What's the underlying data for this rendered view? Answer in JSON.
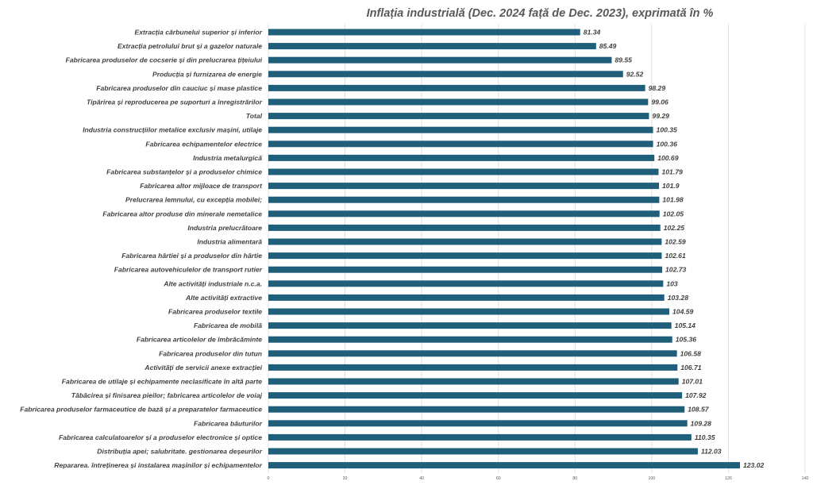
{
  "chart_data": {
    "type": "bar",
    "orientation": "horizontal",
    "title": "Inflația industrială (Dec. 2024 față de  Dec. 2023), exprimată în %",
    "categories": [
      "Extracția cărbunelui superior și inferior",
      "Extracția petrolului brut și a gazelor naturale",
      "Fabricarea produselor de cocserie și din prelucrarea țițeiului",
      "Producția și furnizarea de energie",
      "Fabricarea produselor din cauciuc și mase plastice",
      "Tipărirea și reproducerea pe suporturi a înregistrărilor",
      "Total",
      "Industria construcțiilor metalice  exclusiv mașini, utilaje",
      "Fabricarea echipamentelor electrice",
      "Industria metalurgică",
      "Fabricarea substanțelor și a produselor chimice",
      "Fabricarea altor mijloace de transport",
      "Prelucrarea lemnului,  cu excepția mobilei;",
      "Fabricarea altor produse din minerale nemetalice",
      "Industria prelucrătoare",
      "Industria alimentară",
      "Fabricarea hârtiei și a produselor din hârtie",
      "Fabricarea autovehiculelor de transport rutier",
      "Alte activități industriale n.c.a.",
      "Alte activități extractive",
      "Fabricarea produselor textile",
      "Fabricarea de mobilă",
      "Fabricarea articolelor de îmbrăcăminte",
      "Fabricarea produselor din tutun",
      "Activități de servicii anexe extracției",
      "Fabricarea de utilaje și echipamente neclasificate în altă parte",
      "Tăbăcirea și finisarea pieilor; fabricarea articolelor de voiaj",
      "Fabricarea produselor farmaceutice de bază și a preparatelor farmaceutice",
      "Fabricarea băuturilor",
      "Fabricarea calculatoarelor și a produselor electronice și optice",
      "Distribuția apei; salubritate. gestionarea deșeurilor",
      "Repararea. întreținerea și instalarea mașinilor și echipamentelor"
    ],
    "values": [
      81.34,
      85.49,
      89.55,
      92.52,
      98.29,
      99.06,
      99.29,
      100.35,
      100.36,
      100.69,
      101.79,
      101.9,
      101.98,
      102.05,
      102.25,
      102.59,
      102.61,
      102.73,
      103,
      103.28,
      104.59,
      105.14,
      105.36,
      106.58,
      106.71,
      107.01,
      107.92,
      108.57,
      109.28,
      110.35,
      112.03,
      123.02
    ],
    "value_labels": [
      "81.34",
      "85.49",
      "89.55",
      "92.52",
      "98.29",
      "99.06",
      "99.29",
      "100.35",
      "100.36",
      "100.69",
      "101.79",
      "101.9",
      "101.98",
      "102.05",
      "102.25",
      "102.59",
      "102.61",
      "102.73",
      "103",
      "103.28",
      "104.59",
      "105.14",
      "105.36",
      "106.58",
      "106.71",
      "107.01",
      "107.92",
      "108.57",
      "109.28",
      "110.35",
      "112.03",
      "123.02"
    ],
    "xlim": [
      0,
      140
    ],
    "xticks": [
      0,
      20,
      40,
      60,
      80,
      100,
      120,
      140
    ],
    "grid": true,
    "legend": "none",
    "bar_color": "#1f5f7a"
  }
}
